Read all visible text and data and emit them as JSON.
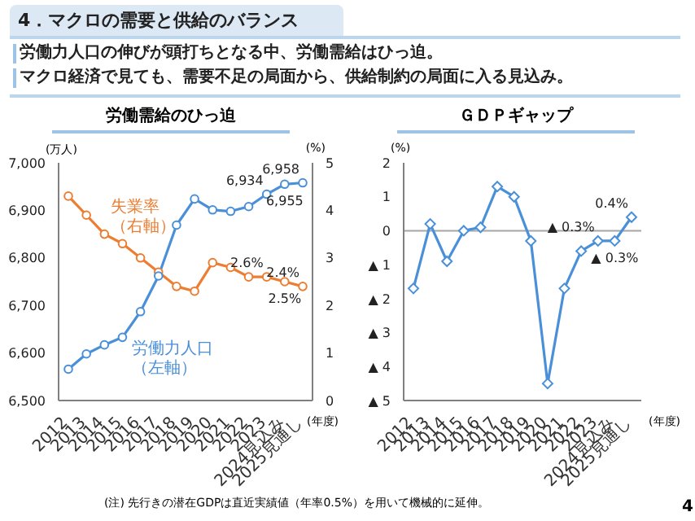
{
  "chart_data": [
    {
      "type": "other",
      "title": "4．マクロの需要と供給のバランス",
      "annotations": [
        "労働力人口の伸びが頭打ちとなる中、労働需給はひっ迫。",
        "マクロ経済で見ても、需要不足の局面から、供給制約の局面に入る見込み。"
      ]
    },
    {
      "type": "line",
      "title": "労働需給のひっ迫",
      "ylabel": "(万人)",
      "y2label": "(%)",
      "xlabel": "(年度)",
      "categories": [
        "2012",
        "2013",
        "2014",
        "2015",
        "2016",
        "2017",
        "2018",
        "2019",
        "2020",
        "2021",
        "2022",
        "2023",
        "2024見込み",
        "2025見通し"
      ],
      "series": [
        {
          "name": "失業率（右軸）",
          "color": "#ed7d31",
          "axis": "y2",
          "values": [
            4.3,
            3.9,
            3.5,
            3.3,
            3.0,
            2.7,
            2.4,
            2.3,
            2.9,
            2.8,
            2.6,
            2.6,
            2.5,
            2.4
          ],
          "value_labels": [
            null,
            null,
            null,
            null,
            null,
            null,
            null,
            null,
            null,
            null,
            null,
            "2.6%",
            "2.5%",
            "2.4%"
          ]
        },
        {
          "name": "労働力人口（左軸）",
          "color": "#4a90d9",
          "values": [
            6566,
            6598,
            6617,
            6633,
            6687,
            6762,
            6869,
            6924,
            6901,
            6898,
            6908,
            6934,
            6955,
            6958
          ],
          "value_labels": [
            null,
            null,
            null,
            null,
            null,
            null,
            null,
            null,
            null,
            null,
            null,
            "6,934",
            "6,955",
            "6,958"
          ]
        }
      ],
      "ylim": [
        6500,
        7000
      ],
      "yticks": [
        {
          "value": 6500,
          "label": "6,500"
        },
        {
          "value": 6600,
          "label": "6,600"
        },
        {
          "value": 6700,
          "label": "6,700"
        },
        {
          "value": 6800,
          "label": "6,800"
        },
        {
          "value": 6900,
          "label": "6,900"
        },
        {
          "value": 7000,
          "label": "7,000"
        }
      ],
      "y2lim": [
        0,
        5
      ],
      "y2ticks": [
        0,
        1,
        2,
        3,
        4,
        5
      ],
      "marker": "circle",
      "line_style": "solid"
    },
    {
      "type": "line",
      "title": "ＧＤＰギャップ",
      "ylabel": "(%)",
      "xlabel": "(年度)",
      "categories": [
        "2012",
        "2013",
        "2014",
        "2015",
        "2016",
        "2017",
        "2018",
        "2019",
        "2020",
        "2021",
        "2022",
        "2023",
        "2024見込み",
        "2025見通し"
      ],
      "series": [
        {
          "color": "#4a90d9",
          "values": [
            -1.7,
            0.2,
            -0.9,
            0.0,
            0.1,
            1.3,
            1.0,
            -0.3,
            -4.5,
            -1.7,
            -0.6,
            -0.3,
            -0.3,
            0.4
          ],
          "value_labels": [
            null,
            null,
            null,
            null,
            null,
            null,
            null,
            null,
            null,
            null,
            null,
            null,
            null,
            "0.4%"
          ]
        }
      ],
      "ylim": [
        -5,
        2
      ],
      "yticks": [
        {
          "value": -5,
          "label": "▲ 5"
        },
        {
          "value": -4,
          "label": "▲ 4"
        },
        {
          "value": -3,
          "label": "▲ 3"
        },
        {
          "value": -2,
          "label": "▲ 2"
        },
        {
          "value": -1,
          "label": "▲ 1"
        },
        0,
        1,
        2
      ],
      "ref_lines": [
        {
          "axis": "y",
          "value": 0,
          "color": "#a6a6a6"
        }
      ],
      "marker": "diamond",
      "line_style": "solid",
      "annotations": [
        {
          "text": "▲ 0.3%",
          "x": "2023",
          "y": -0.3
        },
        {
          "text": "▲ 0.3%",
          "x": "2024見込み",
          "y": -0.3
        },
        "(注) 先行きの潜在GDPは直近実績値（年率0.5%）を用いて機械的に延伸。",
        "4"
      ]
    }
  ]
}
